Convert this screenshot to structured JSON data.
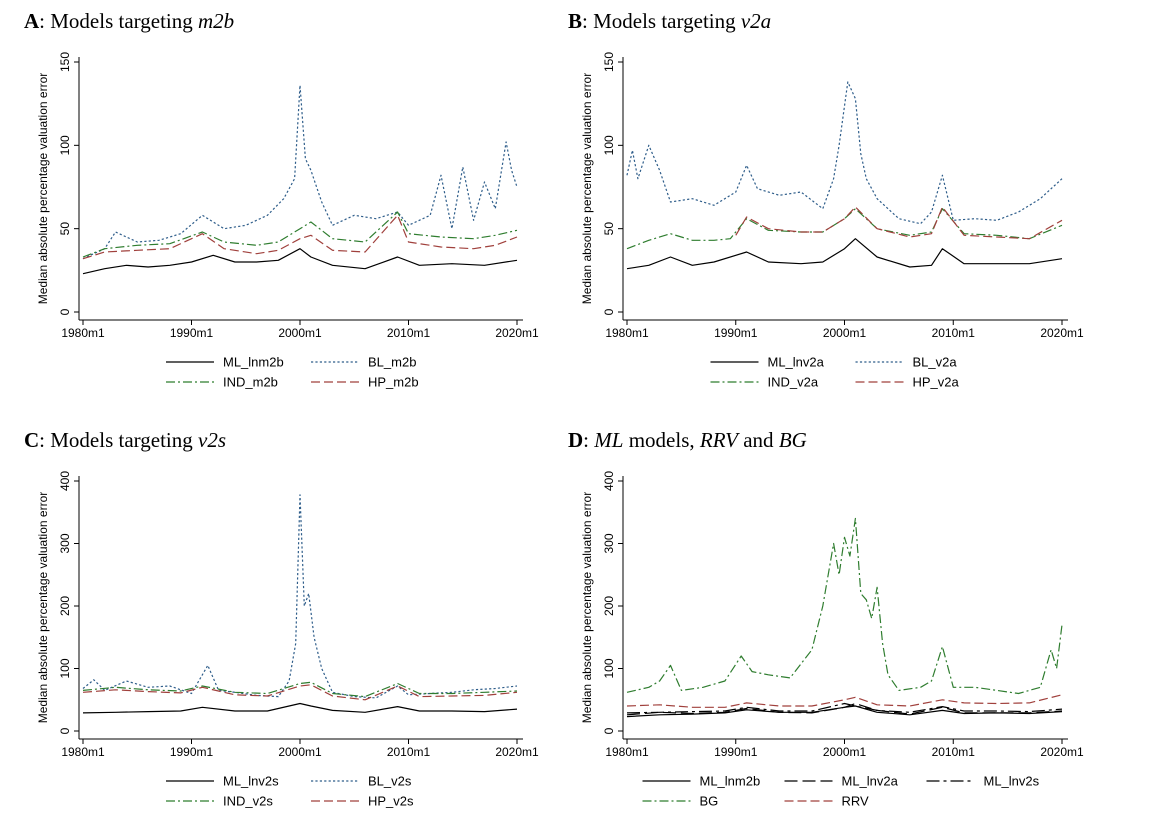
{
  "chart_data": [
    {
      "id": "A",
      "type": "line",
      "title": {
        "letter": "A",
        "text": ": Models targeting ",
        "italic": "m2b",
        "tail": ""
      },
      "ylabel": "Median absolute percentage valuation error",
      "ylim": [
        0,
        150
      ],
      "yticks": [
        "0",
        "50",
        "100",
        "150"
      ],
      "xlim": [
        1980,
        2020
      ],
      "xticks": [
        "1980m1",
        "1990m1",
        "2000m1",
        "2010m1",
        "2020m1"
      ],
      "legend": {
        "columns": 2
      },
      "series": [
        {
          "name": "ML_lnm2b",
          "color": "#000000",
          "dash": "solid",
          "x": [
            1980,
            1982,
            1984,
            1986,
            1988,
            1990,
            1992,
            1994,
            1996,
            1998,
            2000,
            2001,
            2003,
            2006,
            2009,
            2011,
            2014,
            2017,
            2020
          ],
          "y": [
            23,
            26,
            28,
            27,
            28,
            30,
            34,
            30,
            30,
            31,
            38,
            33,
            28,
            26,
            33,
            28,
            29,
            28,
            31
          ]
        },
        {
          "name": "BL_m2b",
          "color": "#2e5d8a",
          "dash": "dot",
          "x": [
            1980,
            1982,
            1983,
            1985,
            1987,
            1989,
            1991,
            1993,
            1995,
            1997,
            1998.5,
            1999.5,
            2000,
            2000.5,
            2001,
            2002,
            2003,
            2005,
            2007,
            2009,
            2010,
            2012,
            2013,
            2014,
            2015,
            2016,
            2017,
            2018,
            2019,
            2019.5,
            2020
          ],
          "y": [
            32,
            38,
            48,
            42,
            43,
            47,
            58,
            50,
            52,
            58,
            68,
            80,
            136,
            92,
            85,
            66,
            52,
            58,
            56,
            60,
            52,
            58,
            82,
            50,
            87,
            55,
            78,
            62,
            102,
            85,
            75
          ]
        },
        {
          "name": "IND_m2b",
          "color": "#2f7d2f",
          "dash": "dashdot",
          "x": [
            1980,
            1982,
            1985,
            1988,
            1991,
            1993,
            1996,
            1998,
            2000,
            2001,
            2003,
            2006,
            2009,
            2010,
            2013,
            2016,
            2018,
            2020
          ],
          "y": [
            33,
            38,
            40,
            41,
            48,
            42,
            40,
            42,
            50,
            54,
            44,
            42,
            60,
            47,
            45,
            44,
            46,
            49
          ]
        },
        {
          "name": "HP_m2b",
          "color": "#a0403c",
          "dash": "dash",
          "x": [
            1980,
            1982,
            1985,
            1988,
            1991,
            1993,
            1996,
            1998,
            2000,
            2001,
            2003,
            2006,
            2009,
            2010,
            2013,
            2016,
            2018,
            2020
          ],
          "y": [
            32,
            36,
            37,
            38,
            47,
            38,
            35,
            37,
            44,
            46,
            37,
            36,
            58,
            42,
            39,
            38,
            40,
            45
          ]
        }
      ]
    },
    {
      "id": "B",
      "type": "line",
      "title": {
        "letter": "B",
        "text": ": Models targeting ",
        "italic": "v2a",
        "tail": ""
      },
      "ylabel": "Median absolute percentage valuation error",
      "ylim": [
        0,
        150
      ],
      "yticks": [
        "0",
        "50",
        "100",
        "150"
      ],
      "xlim": [
        1980,
        2020
      ],
      "xticks": [
        "1980m1",
        "1990m1",
        "2000m1",
        "2010m1",
        "2020m1"
      ],
      "legend": {
        "columns": 2
      },
      "series": [
        {
          "name": "ML_lnv2a",
          "color": "#000000",
          "dash": "solid",
          "x": [
            1980,
            1982,
            1984,
            1986,
            1988,
            1991,
            1993,
            1996,
            1998,
            2000,
            2001,
            2003,
            2006,
            2008,
            2009,
            2011,
            2014,
            2017,
            2020
          ],
          "y": [
            26,
            28,
            33,
            28,
            30,
            36,
            30,
            29,
            30,
            38,
            44,
            33,
            27,
            28,
            38,
            29,
            29,
            29,
            32
          ]
        },
        {
          "name": "BL_v2a",
          "color": "#2e5d8a",
          "dash": "dot",
          "x": [
            1980,
            1980.5,
            1981,
            1982,
            1983,
            1984,
            1986,
            1988,
            1990,
            1991,
            1992,
            1994,
            1996,
            1998,
            1999,
            1999.5,
            2000.3,
            2001,
            2001.5,
            2002,
            2003,
            2005,
            2007,
            2008,
            2009,
            2010,
            2012,
            2014,
            2016,
            2018,
            2020
          ],
          "y": [
            82,
            97,
            80,
            100,
            85,
            66,
            68,
            64,
            72,
            88,
            74,
            70,
            72,
            62,
            80,
            100,
            138,
            128,
            95,
            80,
            68,
            56,
            53,
            60,
            82,
            55,
            56,
            55,
            60,
            68,
            80
          ]
        },
        {
          "name": "IND_v2a",
          "color": "#2f7d2f",
          "dash": "dashdot",
          "x": [
            1980,
            1982,
            1984,
            1986,
            1988,
            1989.5,
            1991,
            1993,
            1996,
            1998,
            2000,
            2001,
            2003,
            2006,
            2008,
            2009,
            2011,
            2014,
            2017,
            2020
          ],
          "y": [
            38,
            43,
            47,
            43,
            43,
            44,
            56,
            49,
            48,
            48,
            56,
            62,
            50,
            46,
            48,
            62,
            47,
            46,
            44,
            52
          ]
        },
        {
          "name": "HP_v2a",
          "color": "#a0403c",
          "dash": "dash",
          "x": [
            1990,
            1991,
            1993,
            1996,
            1998,
            2000,
            2001,
            2003,
            2006,
            2008,
            2009,
            2011,
            2014,
            2017,
            2020
          ],
          "y": [
            46,
            57,
            50,
            48,
            48,
            56,
            63,
            50,
            45,
            47,
            63,
            46,
            45,
            44,
            55
          ]
        }
      ]
    },
    {
      "id": "C",
      "type": "line",
      "title": {
        "letter": "C",
        "text": ": Models targeting ",
        "italic": "v2s",
        "tail": ""
      },
      "ylabel": "Median absolute percentage valuation error",
      "ylim": [
        0,
        400
      ],
      "yticks": [
        "0",
        "100",
        "200",
        "300",
        "400"
      ],
      "xlim": [
        1980,
        2020
      ],
      "xticks": [
        "1980m1",
        "1990m1",
        "2000m1",
        "2010m1",
        "2020m1"
      ],
      "legend": {
        "columns": 2
      },
      "series": [
        {
          "name": "ML_lnv2s",
          "color": "#000000",
          "dash": "solid",
          "x": [
            1980,
            1983,
            1986,
            1989,
            1991,
            1994,
            1997,
            2000,
            2001,
            2003,
            2006,
            2009,
            2011,
            2014,
            2017,
            2020
          ],
          "y": [
            29,
            30,
            31,
            32,
            38,
            32,
            32,
            44,
            40,
            33,
            30,
            39,
            32,
            32,
            31,
            35
          ]
        },
        {
          "name": "BL_v2s",
          "color": "#2e5d8a",
          "dash": "dot",
          "x": [
            1980,
            1981,
            1982,
            1984,
            1986,
            1988,
            1990,
            1991.5,
            1992.5,
            1994,
            1996,
            1998,
            1999,
            1999.6,
            2000,
            2000.4,
            2000.8,
            2001.3,
            2002,
            2003,
            2005,
            2007,
            2009,
            2010,
            2012,
            2014,
            2016,
            2018,
            2020
          ],
          "y": [
            68,
            82,
            65,
            80,
            70,
            72,
            60,
            105,
            65,
            62,
            57,
            55,
            80,
            140,
            378,
            200,
            220,
            150,
            100,
            62,
            55,
            53,
            72,
            58,
            60,
            62,
            66,
            68,
            72
          ]
        },
        {
          "name": "IND_v2s",
          "color": "#2f7d2f",
          "dash": "dashdot",
          "x": [
            1980,
            1983,
            1986,
            1989,
            1991,
            1994,
            1997,
            2000,
            2001,
            2003,
            2006,
            2009,
            2011,
            2014,
            2017,
            2020
          ],
          "y": [
            65,
            70,
            66,
            64,
            72,
            62,
            60,
            76,
            78,
            60,
            55,
            76,
            60,
            60,
            62,
            64
          ]
        },
        {
          "name": "HP_v2s",
          "color": "#a0403c",
          "dash": "dash",
          "x": [
            1980,
            1983,
            1986,
            1989,
            1991,
            1994,
            1997,
            2000,
            2001,
            2003,
            2006,
            2009,
            2011,
            2014,
            2017,
            2020
          ],
          "y": [
            62,
            66,
            63,
            61,
            70,
            58,
            56,
            72,
            74,
            56,
            50,
            72,
            55,
            56,
            57,
            62
          ]
        }
      ]
    },
    {
      "id": "D",
      "type": "line",
      "title": {
        "letter": "D",
        "text": ": ",
        "italic": "ML",
        "tail": " models, ",
        "italic2": "RRV",
        "tail2": " and ",
        "italic3": "BG"
      },
      "ylabel": "Median absolute percentage valuation error",
      "ylim": [
        0,
        400
      ],
      "yticks": [
        "0",
        "100",
        "200",
        "300",
        "400"
      ],
      "xlim": [
        1980,
        2020
      ],
      "xticks": [
        "1980m1",
        "1990m1",
        "2000m1",
        "2010m1",
        "2020m1"
      ],
      "legend": {
        "columns": 3
      },
      "series": [
        {
          "name": "ML_lnm2b",
          "color": "#000000",
          "dash": "solid",
          "x": [
            1980,
            1983,
            1986,
            1989,
            1991,
            1994,
            1997,
            2000,
            2001,
            2003,
            2006,
            2009,
            2011,
            2014,
            2017,
            2020
          ],
          "y": [
            23,
            26,
            27,
            29,
            34,
            30,
            30,
            38,
            40,
            30,
            26,
            33,
            28,
            29,
            28,
            31
          ]
        },
        {
          "name": "ML_lnv2a",
          "color": "#000000",
          "dash": "longdash",
          "x": [
            1980,
            1983,
            1986,
            1989,
            1991,
            1994,
            1997,
            2000,
            2001,
            2003,
            2006,
            2009,
            2011,
            2014,
            2017,
            2020
          ],
          "y": [
            26,
            30,
            28,
            30,
            36,
            30,
            29,
            38,
            44,
            33,
            27,
            38,
            29,
            29,
            29,
            32
          ]
        },
        {
          "name": "ML_lnv2s",
          "color": "#000000",
          "dash": "longdashdot",
          "x": [
            1980,
            1983,
            1986,
            1989,
            1991,
            1994,
            1997,
            2000,
            2001,
            2003,
            2006,
            2009,
            2011,
            2014,
            2017,
            2020
          ],
          "y": [
            29,
            30,
            31,
            32,
            38,
            32,
            32,
            44,
            40,
            33,
            30,
            39,
            32,
            32,
            31,
            35
          ]
        },
        {
          "name": "BG",
          "color": "#2f7d2f",
          "dash": "dashdot",
          "x": [
            1980,
            1982,
            1983,
            1984,
            1985,
            1987,
            1989,
            1990.5,
            1991.5,
            1993,
            1995,
            1997,
            1998,
            1999,
            1999.5,
            2000,
            2000.5,
            2001,
            2001.5,
            2002,
            2002.5,
            2003,
            2003.5,
            2004,
            2005,
            2007,
            2008,
            2009,
            2010,
            2012,
            2014,
            2016,
            2018,
            2019,
            2019.5,
            2020
          ],
          "y": [
            62,
            70,
            80,
            105,
            65,
            70,
            80,
            120,
            95,
            90,
            85,
            130,
            200,
            300,
            250,
            310,
            280,
            340,
            220,
            210,
            180,
            230,
            140,
            90,
            65,
            70,
            80,
            135,
            70,
            70,
            65,
            60,
            70,
            130,
            100,
            170
          ]
        },
        {
          "name": "RRV",
          "color": "#a0403c",
          "dash": "dash",
          "x": [
            1980,
            1983,
            1986,
            1989,
            1991,
            1994,
            1997,
            2000,
            2001,
            2003,
            2006,
            2009,
            2011,
            2014,
            2017,
            2020
          ],
          "y": [
            40,
            42,
            38,
            38,
            45,
            40,
            40,
            50,
            54,
            42,
            40,
            50,
            45,
            44,
            45,
            58
          ]
        }
      ]
    }
  ]
}
